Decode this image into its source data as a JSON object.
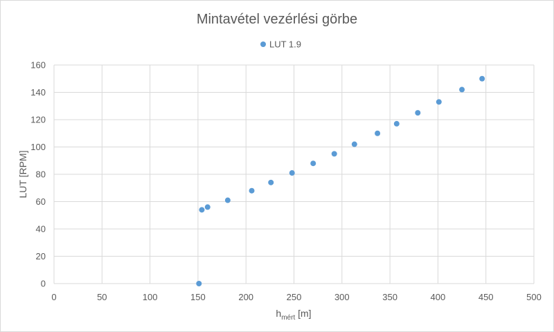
{
  "chart_data": {
    "type": "scatter",
    "title": "Mintavétel vezérlési görbe",
    "xlabel_main": "h",
    "xlabel_sub": "mért",
    "xlabel_unit": " [m]",
    "ylabel": "LUT [RPM]",
    "xlim": [
      0,
      500
    ],
    "ylim": [
      0,
      160
    ],
    "x_ticks": [
      0,
      50,
      100,
      150,
      200,
      250,
      300,
      350,
      400,
      450,
      500
    ],
    "y_ticks": [
      0,
      20,
      40,
      60,
      80,
      100,
      120,
      140,
      160
    ],
    "grid": true,
    "legend_position": "top",
    "series": [
      {
        "name": "LUT 1.9",
        "color": "#5b9bd5",
        "points": [
          [
            151,
            0
          ],
          [
            154,
            54
          ],
          [
            160,
            56
          ],
          [
            181,
            61
          ],
          [
            206,
            68
          ],
          [
            226,
            74
          ],
          [
            248,
            81
          ],
          [
            270,
            88
          ],
          [
            292,
            95
          ],
          [
            313,
            102
          ],
          [
            337,
            110
          ],
          [
            357,
            117
          ],
          [
            379,
            125
          ],
          [
            401,
            133
          ],
          [
            425,
            142
          ],
          [
            446,
            150
          ]
        ]
      }
    ]
  }
}
